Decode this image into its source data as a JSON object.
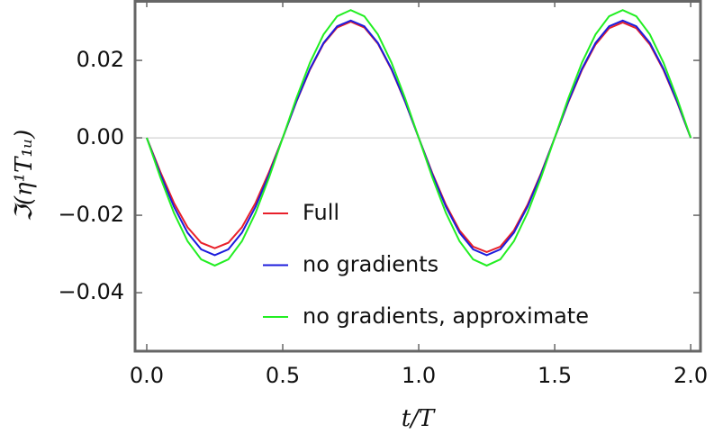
{
  "chart_data": {
    "type": "line",
    "xlabel": "t/T",
    "ylabel": "ℑ(η¹T₁ᵤ)",
    "x": [
      0,
      0.05,
      0.1,
      0.15,
      0.2,
      0.25,
      0.3,
      0.35,
      0.4,
      0.45,
      0.5,
      0.55,
      0.6,
      0.65,
      0.7,
      0.75,
      0.8,
      0.85,
      0.9,
      0.95,
      1,
      1.05,
      1.1,
      1.15,
      1.2,
      1.25,
      1.3,
      1.35,
      1.4,
      1.45,
      1.5,
      1.55,
      1.6,
      1.65,
      1.7,
      1.75,
      1.8,
      1.85,
      1.9,
      1.95,
      2
    ],
    "series": [
      {
        "name": "Full",
        "color": "#e8202a",
        "values": [
          0,
          -0.0088,
          -0.0168,
          -0.0231,
          -0.0271,
          -0.0285,
          -0.0271,
          -0.0231,
          -0.0168,
          -0.0088,
          0,
          0.0093,
          0.0176,
          0.0243,
          0.0285,
          0.03,
          0.0285,
          0.0243,
          0.0176,
          0.0093,
          0,
          -0.0091,
          -0.0173,
          -0.0239,
          -0.0281,
          -0.0295,
          -0.0281,
          -0.0239,
          -0.0173,
          -0.0091,
          0,
          0.0092,
          0.0175,
          0.0241,
          0.0283,
          0.0298,
          0.0283,
          0.0241,
          0.0175,
          0.0092,
          0
        ]
      },
      {
        "name": "no gradients",
        "color": "#1c1cdc",
        "values": [
          0,
          -0.0094,
          -0.0178,
          -0.0245,
          -0.0288,
          -0.0303,
          -0.0288,
          -0.0245,
          -0.0178,
          -0.0094,
          0,
          0.0094,
          0.0178,
          0.0245,
          0.0288,
          0.0303,
          0.0288,
          0.0245,
          0.0178,
          0.0094,
          0,
          -0.0094,
          -0.0178,
          -0.0245,
          -0.0288,
          -0.0303,
          -0.0288,
          -0.0245,
          -0.0178,
          -0.0094,
          0,
          0.0094,
          0.0178,
          0.0245,
          0.0288,
          0.0303,
          0.0288,
          0.0245,
          0.0178,
          0.0094,
          0
        ]
      },
      {
        "name": "no gradients, approximate",
        "color": "#22ee22",
        "values": [
          0,
          -0.0102,
          -0.0194,
          -0.0267,
          -0.0314,
          -0.033,
          -0.0314,
          -0.0267,
          -0.0194,
          -0.0102,
          0,
          0.0102,
          0.0194,
          0.0267,
          0.0314,
          0.033,
          0.0314,
          0.0267,
          0.0194,
          0.0102,
          0,
          -0.0102,
          -0.0194,
          -0.0267,
          -0.0314,
          -0.033,
          -0.0314,
          -0.0267,
          -0.0194,
          -0.0102,
          0,
          0.0102,
          0.0194,
          0.0267,
          0.0314,
          0.033,
          0.0314,
          0.0267,
          0.0194,
          0.0102,
          0
        ]
      }
    ],
    "xlim": [
      -0.043,
      2.036
    ],
    "ylim": [
      -0.0551,
      0.0356
    ],
    "xticks": [
      {
        "value": 0,
        "label": "0.0"
      },
      0.5,
      {
        "value": 1,
        "label": "1.0"
      },
      1.5,
      {
        "value": 2,
        "label": "2.0"
      }
    ],
    "yticks": [
      {
        "value": -0.04,
        "label": "−0.04"
      },
      {
        "value": -0.02,
        "label": "−0.02"
      },
      {
        "value": 0,
        "label": "0.00"
      },
      {
        "value": 0.02,
        "label": "0.02"
      }
    ],
    "zero_line": true,
    "legend": "center"
  }
}
